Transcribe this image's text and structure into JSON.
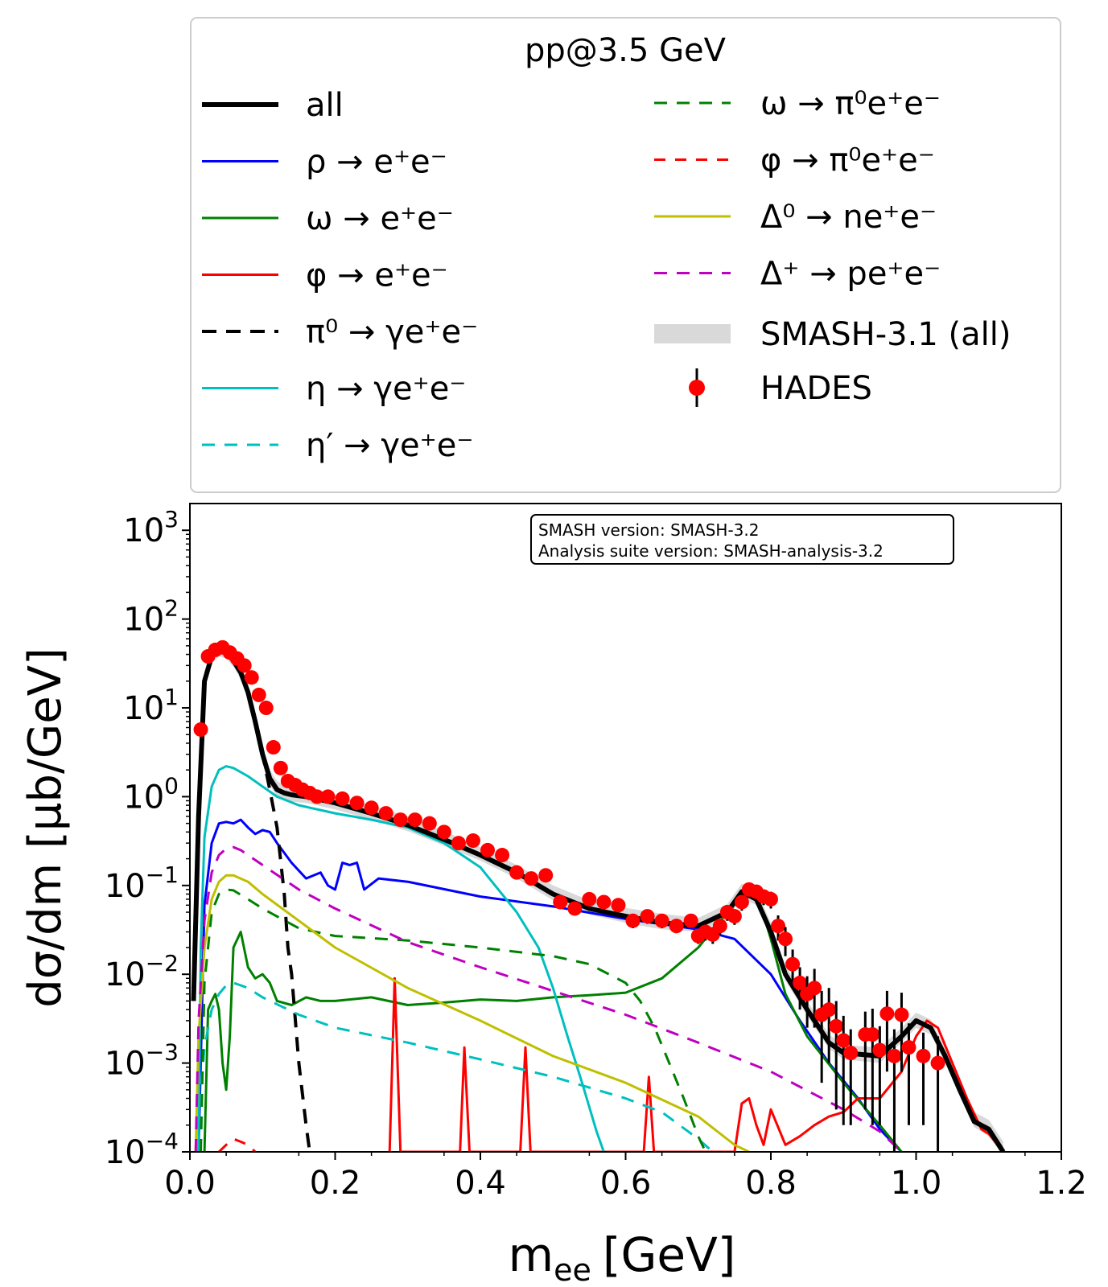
{
  "chart_data": {
    "type": "line",
    "xscale": "linear",
    "yscale": "log",
    "xlim": [
      0.0,
      1.2
    ],
    "ylim": [
      0.0001,
      2000
    ],
    "xlabel_main": "m",
    "xlabel_sub": "ee",
    "xlabel_unit": "[GeV]",
    "ylabel": "dσ/dm [μb/GeV]",
    "x_ticks": [
      "0.0",
      "0.2",
      "0.4",
      "0.6",
      "0.8",
      "1.0",
      "1.2"
    ],
    "y_ticks": [
      {
        "base": "10",
        "exp": "3"
      },
      {
        "base": "10",
        "exp": "2"
      },
      {
        "base": "10",
        "exp": "1"
      },
      {
        "base": "10",
        "exp": "0"
      },
      {
        "base": "10",
        "exp": "−1"
      },
      {
        "base": "10",
        "exp": "−2"
      },
      {
        "base": "10",
        "exp": "−3"
      },
      {
        "base": "10",
        "exp": "−4"
      }
    ],
    "legend_title": "pp@3.5 GeV",
    "legend_position": "top, above plot",
    "version_box": [
      "SMASH version: SMASH-3.2",
      "Analysis suite version: SMASH-analysis-3.2"
    ],
    "series": [
      {
        "name": "all",
        "color": "#000000",
        "dash": "solid",
        "width": 6,
        "x": [
          0.005,
          0.012,
          0.02,
          0.03,
          0.04,
          0.05,
          0.06,
          0.07,
          0.08,
          0.09,
          0.1,
          0.11,
          0.12,
          0.13,
          0.14,
          0.16,
          0.2,
          0.25,
          0.3,
          0.35,
          0.4,
          0.45,
          0.5,
          0.55,
          0.6,
          0.65,
          0.7,
          0.74,
          0.76,
          0.78,
          0.8,
          0.82,
          0.85,
          0.88,
          0.9,
          0.95,
          0.98,
          1.0,
          1.02,
          1.04,
          1.06,
          1.08,
          1.1,
          1.12
        ],
        "y": [
          0.005,
          0.6,
          20,
          38,
          45,
          42,
          34,
          25,
          15,
          7,
          3,
          1.6,
          1.2,
          1.1,
          1.05,
          1.0,
          0.85,
          0.65,
          0.48,
          0.33,
          0.22,
          0.14,
          0.08,
          0.055,
          0.045,
          0.038,
          0.035,
          0.05,
          0.085,
          0.07,
          0.03,
          0.01,
          0.004,
          0.0017,
          0.0013,
          0.0012,
          0.002,
          0.003,
          0.0025,
          0.0012,
          0.0005,
          0.00022,
          0.00018,
          0.0001
        ]
      },
      {
        "name": "ρ → e⁺e⁻",
        "color": "#0000ff",
        "dash": "solid",
        "width": 3,
        "x": [
          0.012,
          0.02,
          0.03,
          0.04,
          0.05,
          0.06,
          0.07,
          0.08,
          0.09,
          0.1,
          0.11,
          0.12,
          0.14,
          0.16,
          0.18,
          0.19,
          0.2,
          0.21,
          0.22,
          0.23,
          0.24,
          0.26,
          0.3,
          0.4,
          0.5,
          0.6,
          0.7,
          0.75,
          0.8,
          0.84,
          0.88,
          0.92,
          0.95,
          0.98
        ],
        "y": [
          0.0001,
          0.06,
          0.3,
          0.5,
          0.52,
          0.5,
          0.55,
          0.45,
          0.38,
          0.42,
          0.4,
          0.3,
          0.18,
          0.12,
          0.14,
          0.1,
          0.09,
          0.18,
          0.17,
          0.18,
          0.09,
          0.12,
          0.11,
          0.075,
          0.058,
          0.042,
          0.032,
          0.025,
          0.01,
          0.003,
          0.001,
          0.0004,
          0.00018,
          0.0001
        ]
      },
      {
        "name": "ω → e⁺e⁻",
        "color": "#008000",
        "dash": "solid",
        "width": 3,
        "x": [
          0.02,
          0.025,
          0.03,
          0.035,
          0.04,
          0.045,
          0.05,
          0.055,
          0.06,
          0.07,
          0.08,
          0.09,
          0.1,
          0.11,
          0.12,
          0.14,
          0.16,
          0.18,
          0.2,
          0.25,
          0.3,
          0.35,
          0.4,
          0.45,
          0.5,
          0.55,
          0.6,
          0.65,
          0.7,
          0.73,
          0.76,
          0.78,
          0.8,
          0.82,
          0.85,
          0.9,
          0.95,
          0.98
        ],
        "y": [
          0.0001,
          0.004,
          0.005,
          0.006,
          0.004,
          0.001,
          0.0005,
          0.002,
          0.02,
          0.03,
          0.012,
          0.009,
          0.01,
          0.008,
          0.005,
          0.0045,
          0.0055,
          0.005,
          0.005,
          0.0055,
          0.0045,
          0.0048,
          0.0052,
          0.005,
          0.0055,
          0.0058,
          0.0062,
          0.009,
          0.02,
          0.04,
          0.075,
          0.085,
          0.025,
          0.006,
          0.002,
          0.0006,
          0.0002,
          0.0001
        ]
      },
      {
        "name": "φ → e⁺e⁻",
        "color": "#ff0000",
        "dash": "solid",
        "width": 3,
        "x": [
          0.275,
          0.282,
          0.29,
          0.297,
          0.372,
          0.378,
          0.385,
          0.392,
          0.455,
          0.462,
          0.469,
          0.476,
          0.625,
          0.632,
          0.639,
          0.646,
          0.75,
          0.76,
          0.77,
          0.78,
          0.79,
          0.8,
          0.82,
          0.84,
          0.86,
          0.88,
          0.9,
          0.92,
          0.95,
          0.98,
          1.0,
          1.015,
          1.03,
          1.05,
          1.07,
          1.09,
          1.1,
          1.12
        ],
        "y": [
          0.0001,
          0.009,
          0.0001,
          0.0001,
          0.0001,
          0.0015,
          0.0001,
          0.0001,
          0.0001,
          0.0015,
          0.0001,
          0.0001,
          0.0001,
          0.0007,
          0.0001,
          0.0001,
          0.0001,
          0.00035,
          0.0004,
          0.0002,
          0.00012,
          0.0003,
          0.00012,
          0.00015,
          0.0002,
          0.00025,
          0.00028,
          0.0004,
          0.0004,
          0.0008,
          0.002,
          0.003,
          0.0025,
          0.001,
          0.0004,
          0.00018,
          0.00016,
          0.0001
        ]
      },
      {
        "name": "π⁰ → γe⁺e⁻",
        "color": "#000000",
        "dash": "18,12",
        "width": 4,
        "x": [
          0.012,
          0.02,
          0.03,
          0.04,
          0.05,
          0.06,
          0.07,
          0.08,
          0.09,
          0.1,
          0.11,
          0.12,
          0.13,
          0.135,
          0.14,
          0.15,
          0.16,
          0.165
        ],
        "y": [
          0.5,
          19,
          37,
          44,
          42,
          34,
          25,
          15,
          7,
          3,
          1.2,
          0.45,
          0.08,
          0.02,
          0.01,
          0.001,
          0.0002,
          0.0001
        ]
      },
      {
        "name": "η → γe⁺e⁻",
        "color": "#00bfbf",
        "dash": "solid",
        "width": 3,
        "x": [
          0.012,
          0.015,
          0.02,
          0.03,
          0.04,
          0.05,
          0.06,
          0.08,
          0.1,
          0.12,
          0.15,
          0.2,
          0.25,
          0.3,
          0.35,
          0.4,
          0.45,
          0.48,
          0.5,
          0.52,
          0.54,
          0.56,
          0.57
        ],
        "y": [
          0.0001,
          0.02,
          0.35,
          1.3,
          2.0,
          2.2,
          2.1,
          1.7,
          1.3,
          1.0,
          0.8,
          0.65,
          0.55,
          0.45,
          0.3,
          0.16,
          0.05,
          0.02,
          0.007,
          0.002,
          0.0006,
          0.00017,
          0.0001
        ]
      },
      {
        "name": "η′ → γe⁺e⁻",
        "color": "#00bfbf",
        "dash": "16,12",
        "width": 3,
        "x": [
          0.01,
          0.015,
          0.02,
          0.03,
          0.04,
          0.05,
          0.06,
          0.07,
          0.08,
          0.1,
          0.15,
          0.2,
          0.3,
          0.4,
          0.5,
          0.6,
          0.65,
          0.7,
          0.72
        ],
        "y": [
          0.0001,
          0.0005,
          0.0015,
          0.004,
          0.006,
          0.0075,
          0.008,
          0.0075,
          0.007,
          0.0055,
          0.0035,
          0.0025,
          0.0017,
          0.0011,
          0.0007,
          0.0004,
          0.00028,
          0.00014,
          0.0001
        ]
      },
      {
        "name": "ω → π⁰e⁺e⁻",
        "color": "#008000",
        "dash": "16,12",
        "width": 3,
        "x": [
          0.015,
          0.02,
          0.03,
          0.04,
          0.05,
          0.06,
          0.08,
          0.1,
          0.15,
          0.2,
          0.3,
          0.4,
          0.5,
          0.55,
          0.6,
          0.62,
          0.64,
          0.66,
          0.68,
          0.7,
          0.71
        ],
        "y": [
          0.0001,
          0.008,
          0.05,
          0.08,
          0.09,
          0.088,
          0.07,
          0.055,
          0.033,
          0.027,
          0.024,
          0.02,
          0.016,
          0.013,
          0.008,
          0.005,
          0.0025,
          0.001,
          0.0004,
          0.00015,
          0.0001
        ]
      },
      {
        "name": "φ → π⁰e⁺e⁻",
        "color": "#ff0000",
        "dash": "14,12",
        "width": 3,
        "x": [
          0.04,
          0.05,
          0.06,
          0.07,
          0.08,
          0.09,
          0.1
        ],
        "y": [
          0.0001,
          0.00012,
          0.00014,
          0.00013,
          0.00012,
          0.0001,
          9e-05
        ]
      },
      {
        "name": "Δ⁰ → ne⁺e⁻",
        "color": "#bfbf00",
        "dash": "solid",
        "width": 3,
        "x": [
          0.008,
          0.012,
          0.02,
          0.03,
          0.04,
          0.05,
          0.06,
          0.08,
          0.1,
          0.15,
          0.2,
          0.3,
          0.4,
          0.5,
          0.6,
          0.7,
          0.75,
          0.77
        ],
        "y": [
          0.0001,
          0.002,
          0.02,
          0.07,
          0.11,
          0.13,
          0.13,
          0.11,
          0.08,
          0.04,
          0.02,
          0.007,
          0.003,
          0.0012,
          0.0006,
          0.00025,
          0.00012,
          0.0001
        ]
      },
      {
        "name": "Δ⁺ → pe⁺e⁻",
        "color": "#bf00bf",
        "dash": "16,12",
        "width": 3,
        "x": [
          0.008,
          0.012,
          0.02,
          0.03,
          0.04,
          0.05,
          0.06,
          0.07,
          0.08,
          0.1,
          0.15,
          0.2,
          0.3,
          0.4,
          0.5,
          0.6,
          0.7,
          0.8,
          0.9,
          0.95,
          0.98
        ],
        "y": [
          0.0001,
          0.003,
          0.04,
          0.14,
          0.22,
          0.26,
          0.27,
          0.25,
          0.22,
          0.17,
          0.09,
          0.055,
          0.023,
          0.012,
          0.0065,
          0.0035,
          0.0017,
          0.0008,
          0.0003,
          0.00017,
          0.0001
        ]
      }
    ],
    "band": {
      "name": "SMASH-3.1 (all)",
      "color": "#d9d9d9",
      "x": [
        0.005,
        0.012,
        0.02,
        0.03,
        0.04,
        0.05,
        0.06,
        0.07,
        0.08,
        0.09,
        0.1,
        0.11,
        0.12,
        0.13,
        0.14,
        0.16,
        0.2,
        0.25,
        0.3,
        0.35,
        0.4,
        0.45,
        0.5,
        0.55,
        0.6,
        0.65,
        0.7,
        0.74,
        0.76,
        0.78,
        0.8,
        0.82,
        0.85,
        0.88,
        0.9,
        0.95,
        0.98,
        1.0,
        1.02,
        1.04,
        1.06,
        1.08,
        1.1,
        1.12
      ],
      "lo": [
        0.004,
        0.5,
        17,
        32,
        38,
        36,
        29,
        21,
        12.5,
        5.8,
        2.5,
        1.35,
        1.0,
        0.92,
        0.88,
        0.85,
        0.72,
        0.55,
        0.41,
        0.28,
        0.19,
        0.12,
        0.068,
        0.047,
        0.038,
        0.032,
        0.03,
        0.042,
        0.072,
        0.06,
        0.025,
        0.0085,
        0.0034,
        0.00145,
        0.0011,
        0.001,
        0.0017,
        0.0025,
        0.0021,
        0.001,
        0.00042,
        0.00019,
        0.00015,
        9e-05
      ],
      "hi": [
        0.007,
        0.8,
        26,
        48,
        56,
        53,
        43,
        32,
        19,
        9,
        3.8,
        2.0,
        1.5,
        1.35,
        1.3,
        1.22,
        1.05,
        0.8,
        0.6,
        0.41,
        0.27,
        0.17,
        0.1,
        0.068,
        0.056,
        0.048,
        0.043,
        0.062,
        0.105,
        0.088,
        0.038,
        0.0125,
        0.005,
        0.0021,
        0.0016,
        0.0015,
        0.0025,
        0.0037,
        0.0031,
        0.0015,
        0.00062,
        0.00028,
        0.00023,
        0.00013
      ]
    },
    "hades": {
      "name": "HADES",
      "color": "#ff0000",
      "x": [
        0.015,
        0.025,
        0.035,
        0.045,
        0.055,
        0.065,
        0.075,
        0.085,
        0.095,
        0.105,
        0.115,
        0.125,
        0.135,
        0.145,
        0.155,
        0.165,
        0.175,
        0.19,
        0.21,
        0.23,
        0.25,
        0.27,
        0.29,
        0.31,
        0.33,
        0.35,
        0.37,
        0.39,
        0.41,
        0.43,
        0.45,
        0.47,
        0.49,
        0.51,
        0.53,
        0.55,
        0.57,
        0.59,
        0.61,
        0.63,
        0.65,
        0.67,
        0.69,
        0.7,
        0.71,
        0.72,
        0.73,
        0.74,
        0.75,
        0.76,
        0.77,
        0.78,
        0.79,
        0.8,
        0.81,
        0.82,
        0.83,
        0.84,
        0.85,
        0.86,
        0.87,
        0.88,
        0.89,
        0.9,
        0.91,
        0.93,
        0.94,
        0.95,
        0.96,
        0.97,
        0.98,
        0.99,
        1.01,
        1.03
      ],
      "y": [
        5.7,
        38,
        45,
        48,
        42,
        36,
        30,
        22,
        14,
        10,
        3.6,
        2.1,
        1.5,
        1.35,
        1.2,
        1.1,
        1.0,
        1.0,
        0.95,
        0.85,
        0.75,
        0.65,
        0.55,
        0.55,
        0.5,
        0.4,
        0.3,
        0.32,
        0.25,
        0.22,
        0.14,
        0.12,
        0.13,
        0.065,
        0.055,
        0.07,
        0.065,
        0.06,
        0.04,
        0.045,
        0.04,
        0.035,
        0.04,
        0.027,
        0.03,
        0.028,
        0.035,
        0.05,
        0.045,
        0.065,
        0.09,
        0.085,
        0.075,
        0.07,
        0.035,
        0.025,
        0.013,
        0.008,
        0.006,
        0.007,
        0.0035,
        0.004,
        0.0026,
        0.0018,
        0.0013,
        0.0021,
        0.0021,
        0.0014,
        0.0036,
        0.0012,
        0.0035,
        0.0015,
        0.0012,
        0.001
      ],
      "err_lo": [
        5.0,
        34,
        41,
        44,
        38,
        33,
        27,
        20,
        12.5,
        9,
        3.2,
        1.9,
        1.35,
        1.22,
        1.08,
        0.99,
        0.9,
        0.9,
        0.85,
        0.77,
        0.67,
        0.58,
        0.49,
        0.49,
        0.45,
        0.36,
        0.27,
        0.28,
        0.22,
        0.19,
        0.12,
        0.1,
        0.11,
        0.055,
        0.046,
        0.059,
        0.054,
        0.05,
        0.033,
        0.037,
        0.033,
        0.029,
        0.033,
        0.022,
        0.024,
        0.022,
        0.028,
        0.04,
        0.036,
        0.052,
        0.072,
        0.068,
        0.06,
        0.055,
        0.024,
        0.016,
        0.007,
        0.004,
        0.0025,
        0.0025,
        0.0006,
        0.001,
        0.0003,
        0.0002,
        0.0002,
        0.0003,
        0.0002,
        0.0002,
        0.0008,
        0.0001,
        0.0008,
        0.0002,
        0.0002,
        0.0001
      ],
      "err_hi": [
        6.4,
        42,
        49,
        52,
        46,
        39,
        33,
        24,
        15.5,
        11,
        4.0,
        2.3,
        1.65,
        1.48,
        1.32,
        1.21,
        1.1,
        1.1,
        1.05,
        0.93,
        0.83,
        0.72,
        0.61,
        0.61,
        0.55,
        0.44,
        0.33,
        0.36,
        0.28,
        0.25,
        0.16,
        0.14,
        0.15,
        0.075,
        0.064,
        0.081,
        0.076,
        0.07,
        0.047,
        0.053,
        0.047,
        0.041,
        0.047,
        0.032,
        0.036,
        0.034,
        0.042,
        0.06,
        0.054,
        0.078,
        0.108,
        0.102,
        0.09,
        0.085,
        0.046,
        0.034,
        0.019,
        0.012,
        0.0095,
        0.0115,
        0.0065,
        0.007,
        0.005,
        0.0034,
        0.0024,
        0.0038,
        0.0041,
        0.0026,
        0.0065,
        0.0024,
        0.0062,
        0.0028,
        0.0022,
        0.002
      ]
    }
  }
}
